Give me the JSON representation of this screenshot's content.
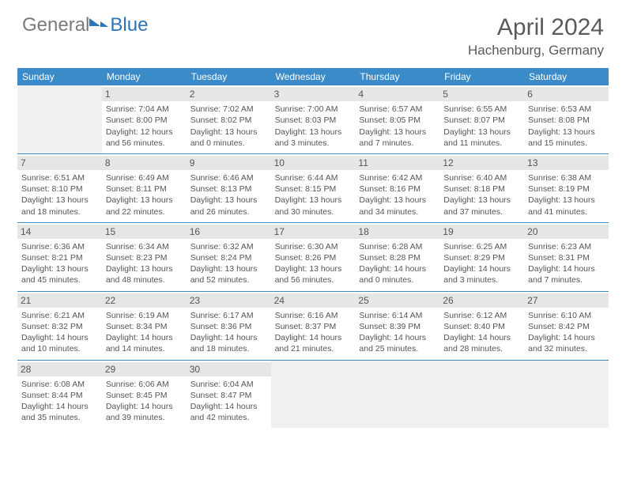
{
  "logo": {
    "general": "General",
    "blue": "Blue"
  },
  "title": "April 2024",
  "location": "Hachenburg, Germany",
  "colors": {
    "header_bg": "#3b8bc8",
    "header_text": "#ffffff",
    "accent": "#2e75b6",
    "text": "#555555",
    "daynum_bg": "#e6e6e6",
    "blank_bg": "#f0f0f0",
    "border": "#3b8bc8"
  },
  "day_names": [
    "Sunday",
    "Monday",
    "Tuesday",
    "Wednesday",
    "Thursday",
    "Friday",
    "Saturday"
  ],
  "weeks": [
    [
      {
        "blank": true
      },
      {
        "day": "1",
        "sunrise": "7:04 AM",
        "sunset": "8:00 PM",
        "daylight": "12 hours and 56 minutes."
      },
      {
        "day": "2",
        "sunrise": "7:02 AM",
        "sunset": "8:02 PM",
        "daylight": "13 hours and 0 minutes."
      },
      {
        "day": "3",
        "sunrise": "7:00 AM",
        "sunset": "8:03 PM",
        "daylight": "13 hours and 3 minutes."
      },
      {
        "day": "4",
        "sunrise": "6:57 AM",
        "sunset": "8:05 PM",
        "daylight": "13 hours and 7 minutes."
      },
      {
        "day": "5",
        "sunrise": "6:55 AM",
        "sunset": "8:07 PM",
        "daylight": "13 hours and 11 minutes."
      },
      {
        "day": "6",
        "sunrise": "6:53 AM",
        "sunset": "8:08 PM",
        "daylight": "13 hours and 15 minutes."
      }
    ],
    [
      {
        "day": "7",
        "sunrise": "6:51 AM",
        "sunset": "8:10 PM",
        "daylight": "13 hours and 18 minutes."
      },
      {
        "day": "8",
        "sunrise": "6:49 AM",
        "sunset": "8:11 PM",
        "daylight": "13 hours and 22 minutes."
      },
      {
        "day": "9",
        "sunrise": "6:46 AM",
        "sunset": "8:13 PM",
        "daylight": "13 hours and 26 minutes."
      },
      {
        "day": "10",
        "sunrise": "6:44 AM",
        "sunset": "8:15 PM",
        "daylight": "13 hours and 30 minutes."
      },
      {
        "day": "11",
        "sunrise": "6:42 AM",
        "sunset": "8:16 PM",
        "daylight": "13 hours and 34 minutes."
      },
      {
        "day": "12",
        "sunrise": "6:40 AM",
        "sunset": "8:18 PM",
        "daylight": "13 hours and 37 minutes."
      },
      {
        "day": "13",
        "sunrise": "6:38 AM",
        "sunset": "8:19 PM",
        "daylight": "13 hours and 41 minutes."
      }
    ],
    [
      {
        "day": "14",
        "sunrise": "6:36 AM",
        "sunset": "8:21 PM",
        "daylight": "13 hours and 45 minutes."
      },
      {
        "day": "15",
        "sunrise": "6:34 AM",
        "sunset": "8:23 PM",
        "daylight": "13 hours and 48 minutes."
      },
      {
        "day": "16",
        "sunrise": "6:32 AM",
        "sunset": "8:24 PM",
        "daylight": "13 hours and 52 minutes."
      },
      {
        "day": "17",
        "sunrise": "6:30 AM",
        "sunset": "8:26 PM",
        "daylight": "13 hours and 56 minutes."
      },
      {
        "day": "18",
        "sunrise": "6:28 AM",
        "sunset": "8:28 PM",
        "daylight": "14 hours and 0 minutes."
      },
      {
        "day": "19",
        "sunrise": "6:25 AM",
        "sunset": "8:29 PM",
        "daylight": "14 hours and 3 minutes."
      },
      {
        "day": "20",
        "sunrise": "6:23 AM",
        "sunset": "8:31 PM",
        "daylight": "14 hours and 7 minutes."
      }
    ],
    [
      {
        "day": "21",
        "sunrise": "6:21 AM",
        "sunset": "8:32 PM",
        "daylight": "14 hours and 10 minutes."
      },
      {
        "day": "22",
        "sunrise": "6:19 AM",
        "sunset": "8:34 PM",
        "daylight": "14 hours and 14 minutes."
      },
      {
        "day": "23",
        "sunrise": "6:17 AM",
        "sunset": "8:36 PM",
        "daylight": "14 hours and 18 minutes."
      },
      {
        "day": "24",
        "sunrise": "6:16 AM",
        "sunset": "8:37 PM",
        "daylight": "14 hours and 21 minutes."
      },
      {
        "day": "25",
        "sunrise": "6:14 AM",
        "sunset": "8:39 PM",
        "daylight": "14 hours and 25 minutes."
      },
      {
        "day": "26",
        "sunrise": "6:12 AM",
        "sunset": "8:40 PM",
        "daylight": "14 hours and 28 minutes."
      },
      {
        "day": "27",
        "sunrise": "6:10 AM",
        "sunset": "8:42 PM",
        "daylight": "14 hours and 32 minutes."
      }
    ],
    [
      {
        "day": "28",
        "sunrise": "6:08 AM",
        "sunset": "8:44 PM",
        "daylight": "14 hours and 35 minutes."
      },
      {
        "day": "29",
        "sunrise": "6:06 AM",
        "sunset": "8:45 PM",
        "daylight": "14 hours and 39 minutes."
      },
      {
        "day": "30",
        "sunrise": "6:04 AM",
        "sunset": "8:47 PM",
        "daylight": "14 hours and 42 minutes."
      },
      {
        "blank": true
      },
      {
        "blank": true
      },
      {
        "blank": true
      },
      {
        "blank": true
      }
    ]
  ],
  "labels": {
    "sunrise": "Sunrise:",
    "sunset": "Sunset:",
    "daylight": "Daylight:"
  }
}
